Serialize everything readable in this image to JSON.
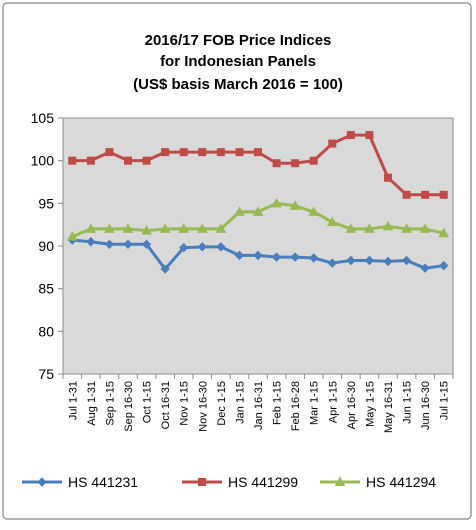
{
  "chart_data": {
    "type": "line",
    "title_lines": [
      "2016/17 FOB Price Indices",
      "for Indonesian Panels",
      "(US$ basis  March  2016 = 100)"
    ],
    "xlabel": "",
    "ylabel": "",
    "ylim": [
      75,
      105
    ],
    "yticks": [
      75,
      80,
      85,
      90,
      95,
      100,
      105
    ],
    "grid": false,
    "legend_position": "bottom",
    "categories": [
      "Jul 1-31",
      "Aug 1-31",
      "Sep 1-15",
      "Sep 16-30",
      "Oct 1-15",
      "Oct 16-31",
      "Nov 1-15",
      "Nov 16-30",
      "Dec 1-15",
      "Jan 1-15",
      "Jan 16-31",
      "Feb 1-15",
      "Feb 16-28",
      "Mar 1-15",
      "Apr 1-15",
      "Apr 16-30",
      "May 1-15",
      "May 16-31",
      "Jun 1-15",
      "Jun 16-30",
      "Jul 1-15"
    ],
    "series": [
      {
        "name": "HS 441231",
        "color": "#4a7ebb",
        "marker": "diamond",
        "values": [
          90.7,
          90.5,
          90.2,
          90.2,
          90.2,
          87.3,
          89.8,
          89.9,
          89.9,
          88.9,
          88.9,
          88.7,
          88.7,
          88.6,
          88.0,
          88.3,
          88.3,
          88.2,
          88.3,
          87.4,
          87.7
        ]
      },
      {
        "name": "HS 441299",
        "color": "#be4b48",
        "marker": "square",
        "values": [
          100.0,
          100.0,
          101.0,
          100.0,
          100.0,
          101.0,
          101.0,
          101.0,
          101.0,
          101.0,
          101.0,
          99.7,
          99.7,
          100.0,
          102.0,
          103.0,
          103.0,
          98.0,
          96.0,
          96.0,
          96.0
        ]
      },
      {
        "name": "HS 441294",
        "color": "#98b954",
        "marker": "triangle",
        "values": [
          91.1,
          92.0,
          92.0,
          92.0,
          91.8,
          92.0,
          92.0,
          92.0,
          92.0,
          94.0,
          94.0,
          95.0,
          94.7,
          94.0,
          92.8,
          92.0,
          92.0,
          92.3,
          92.0,
          92.0,
          91.5
        ]
      }
    ]
  }
}
